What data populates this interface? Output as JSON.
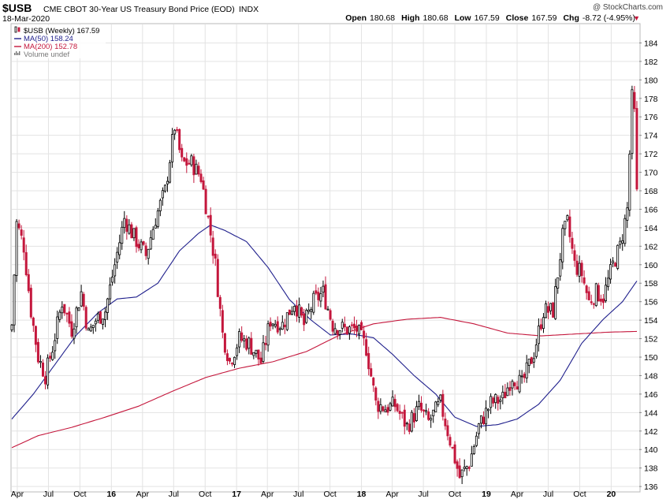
{
  "header": {
    "symbol": "$USB",
    "description": "CME CBOT 30-Year US Treasury Bond Price (EOD)",
    "exchange": "INDX",
    "date": "18-Mar-2020",
    "watermark": "@ StockCharts.com",
    "quote": [
      {
        "label": "Open",
        "value": "180.68"
      },
      {
        "label": "High",
        "value": "180.68"
      },
      {
        "label": "Low",
        "value": "167.59"
      },
      {
        "label": "Close",
        "value": "167.59"
      },
      {
        "label": "Chg",
        "value": "-8.72 (-4.95%)"
      }
    ],
    "chg_marker": "▼"
  },
  "legend": [
    {
      "label": "$USB (Weekly) 167.59",
      "color": "#000000",
      "icon": "candle-icon"
    },
    {
      "label": "MA(50) 158.24",
      "color": "#1f1f8c",
      "icon": "line-icon"
    },
    {
      "label": "MA(200) 152.78",
      "color": "#c4173c",
      "icon": "line-icon"
    },
    {
      "label": "Volume undef",
      "color": "#777777",
      "icon": "volume-icon"
    }
  ],
  "colors": {
    "up": "#000000",
    "down": "#c4173c",
    "ma50": "#1f1f8c",
    "ma200": "#c4173c",
    "grid": "#e3e3e3"
  },
  "chart_data": {
    "type": "line",
    "ylim": [
      135.5,
      186
    ],
    "xlim": [
      "2015-03-16",
      "2020-03-23"
    ],
    "y_ticks": [
      136,
      138,
      140,
      142,
      144,
      146,
      148,
      150,
      152,
      154,
      156,
      158,
      160,
      162,
      164,
      166,
      168,
      170,
      172,
      174,
      176,
      178,
      180,
      182,
      184
    ],
    "x_ticks": [
      {
        "label": "Apr",
        "date": "2015-04-01",
        "bold": false
      },
      {
        "label": "Jul",
        "date": "2015-07-01",
        "bold": false
      },
      {
        "label": "Oct",
        "date": "2015-10-01",
        "bold": false
      },
      {
        "label": "16",
        "date": "2016-01-01",
        "bold": true
      },
      {
        "label": "Apr",
        "date": "2016-04-01",
        "bold": false
      },
      {
        "label": "Jul",
        "date": "2016-07-01",
        "bold": false
      },
      {
        "label": "Oct",
        "date": "2016-10-01",
        "bold": false
      },
      {
        "label": "17",
        "date": "2017-01-01",
        "bold": true
      },
      {
        "label": "Apr",
        "date": "2017-04-01",
        "bold": false
      },
      {
        "label": "Jul",
        "date": "2017-07-01",
        "bold": false
      },
      {
        "label": "Oct",
        "date": "2017-10-01",
        "bold": false
      },
      {
        "label": "18",
        "date": "2018-01-01",
        "bold": true
      },
      {
        "label": "Apr",
        "date": "2018-04-01",
        "bold": false
      },
      {
        "label": "Jul",
        "date": "2018-07-01",
        "bold": false
      },
      {
        "label": "Oct",
        "date": "2018-10-01",
        "bold": false
      },
      {
        "label": "19",
        "date": "2019-01-01",
        "bold": true
      },
      {
        "label": "Apr",
        "date": "2019-04-01",
        "bold": false
      },
      {
        "label": "Jul",
        "date": "2019-07-01",
        "bold": false
      },
      {
        "label": "Oct",
        "date": "2019-10-01",
        "bold": false
      },
      {
        "label": "20",
        "date": "2020-01-01",
        "bold": true
      }
    ],
    "close_anchors": [
      [
        "2015-03-16",
        153.5
      ],
      [
        "2015-03-30",
        164.5
      ],
      [
        "2015-04-20",
        162
      ],
      [
        "2015-05-11",
        155
      ],
      [
        "2015-06-01",
        150
      ],
      [
        "2015-06-22",
        148
      ],
      [
        "2015-07-13",
        151
      ],
      [
        "2015-08-10",
        156
      ],
      [
        "2015-09-07",
        153
      ],
      [
        "2015-10-05",
        157
      ],
      [
        "2015-10-26",
        152.5
      ],
      [
        "2015-11-16",
        154
      ],
      [
        "2015-12-14",
        155
      ],
      [
        "2016-01-11",
        160
      ],
      [
        "2016-02-08",
        165
      ],
      [
        "2016-03-07",
        163
      ],
      [
        "2016-04-11",
        161
      ],
      [
        "2016-05-09",
        165
      ],
      [
        "2016-06-06",
        168
      ],
      [
        "2016-07-04",
        175
      ],
      [
        "2016-07-25",
        171
      ],
      [
        "2016-08-22",
        171
      ],
      [
        "2016-09-19",
        169.5
      ],
      [
        "2016-10-10",
        165
      ],
      [
        "2016-10-31",
        160
      ],
      [
        "2016-11-21",
        152.5
      ],
      [
        "2016-12-12",
        149.5
      ],
      [
        "2017-01-09",
        152
      ],
      [
        "2017-02-06",
        151.5
      ],
      [
        "2017-03-13",
        149.5
      ],
      [
        "2017-04-10",
        154
      ],
      [
        "2017-05-15",
        153.5
      ],
      [
        "2017-06-19",
        156
      ],
      [
        "2017-07-17",
        153.5
      ],
      [
        "2017-08-14",
        156
      ],
      [
        "2017-09-11",
        157
      ],
      [
        "2017-10-09",
        153.5
      ],
      [
        "2017-11-13",
        153
      ],
      [
        "2017-12-18",
        153
      ],
      [
        "2018-01-15",
        151
      ],
      [
        "2018-02-12",
        145
      ],
      [
        "2018-03-12",
        144.5
      ],
      [
        "2018-04-09",
        144.8
      ],
      [
        "2018-05-14",
        142.5
      ],
      [
        "2018-06-18",
        144.5
      ],
      [
        "2018-07-16",
        143
      ],
      [
        "2018-08-20",
        145
      ],
      [
        "2018-09-17",
        141
      ],
      [
        "2018-10-15",
        137
      ],
      [
        "2018-11-12",
        138.5
      ],
      [
        "2018-12-10",
        142.5
      ],
      [
        "2019-01-14",
        145
      ],
      [
        "2019-02-18",
        145.5
      ],
      [
        "2019-03-18",
        148
      ],
      [
        "2019-04-15",
        147
      ],
      [
        "2019-05-20",
        150.5
      ],
      [
        "2019-06-17",
        155
      ],
      [
        "2019-07-15",
        155
      ],
      [
        "2019-08-12",
        163
      ],
      [
        "2019-08-26",
        164.5
      ],
      [
        "2019-09-16",
        160
      ],
      [
        "2019-10-07",
        159
      ],
      [
        "2019-10-28",
        156
      ],
      [
        "2019-11-18",
        157
      ],
      [
        "2019-12-09",
        156.5
      ],
      [
        "2020-01-06",
        160
      ],
      [
        "2020-01-27",
        162
      ],
      [
        "2020-02-17",
        166
      ],
      [
        "2020-03-02",
        178
      ],
      [
        "2020-03-09",
        176.3
      ],
      [
        "2020-03-16",
        167.59
      ]
    ],
    "ma50_anchors": [
      [
        "2015-03-16",
        143.3
      ],
      [
        "2015-05-18",
        146
      ],
      [
        "2015-07-20",
        149.2
      ],
      [
        "2015-09-21",
        152.4
      ],
      [
        "2015-11-23",
        154.8
      ],
      [
        "2016-01-18",
        156.3
      ],
      [
        "2016-03-14",
        156.5
      ],
      [
        "2016-05-16",
        158
      ],
      [
        "2016-07-18",
        161.5
      ],
      [
        "2016-09-12",
        163.4
      ],
      [
        "2016-10-17",
        164.3
      ],
      [
        "2016-11-28",
        163.7
      ],
      [
        "2017-01-30",
        162.5
      ],
      [
        "2017-04-03",
        159.7
      ],
      [
        "2017-06-05",
        156.2
      ],
      [
        "2017-08-07",
        154
      ],
      [
        "2017-10-02",
        152.4
      ],
      [
        "2017-12-04",
        152.5
      ],
      [
        "2018-02-05",
        152.1
      ],
      [
        "2018-04-02",
        150.3
      ],
      [
        "2018-06-04",
        148
      ],
      [
        "2018-08-06",
        146
      ],
      [
        "2018-10-01",
        143.5
      ],
      [
        "2018-12-03",
        142.5
      ],
      [
        "2019-02-04",
        142.7
      ],
      [
        "2019-04-01",
        143.3
      ],
      [
        "2019-06-03",
        144.9
      ],
      [
        "2019-08-05",
        147.5
      ],
      [
        "2019-10-07",
        151.5
      ],
      [
        "2019-12-09",
        154.1
      ],
      [
        "2020-02-03",
        156
      ],
      [
        "2020-03-16",
        158.24
      ]
    ],
    "ma200_anchors": [
      [
        "2015-03-16",
        140.2
      ],
      [
        "2015-06-01",
        141.5
      ],
      [
        "2015-09-07",
        142.4
      ],
      [
        "2015-12-14",
        143.5
      ],
      [
        "2016-03-21",
        144.7
      ],
      [
        "2016-06-27",
        146.3
      ],
      [
        "2016-10-03",
        147.8
      ],
      [
        "2017-01-09",
        148.8
      ],
      [
        "2017-04-17",
        149.5
      ],
      [
        "2017-07-24",
        150.6
      ],
      [
        "2017-10-30",
        152.4
      ],
      [
        "2018-02-05",
        153.6
      ],
      [
        "2018-05-14",
        154.1
      ],
      [
        "2018-08-20",
        154.3
      ],
      [
        "2018-11-26",
        153.6
      ],
      [
        "2019-03-04",
        152.6
      ],
      [
        "2019-06-10",
        152.3
      ],
      [
        "2019-09-16",
        152.5
      ],
      [
        "2019-12-23",
        152.7
      ],
      [
        "2020-03-16",
        152.78
      ]
    ]
  }
}
